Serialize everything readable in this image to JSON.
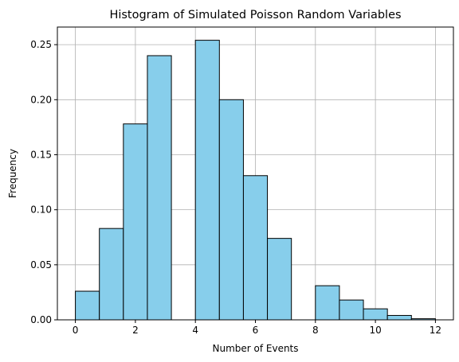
{
  "chart_data": {
    "type": "bar",
    "title": "Histogram of Simulated Poisson Random Variables",
    "xlabel": "Number of Events",
    "ylabel": "Frequency",
    "xlim": [
      -0.6,
      12.6
    ],
    "ylim": [
      0,
      0.266
    ],
    "grid": true,
    "bar_color": "#87ceeb",
    "edge_color": "#000000",
    "grid_color": "#b0b0b0",
    "bin_width": 0.8,
    "bins": [
      {
        "x0": 0.0,
        "value": 0.026
      },
      {
        "x0": 0.8,
        "value": 0.083
      },
      {
        "x0": 1.6,
        "value": 0.178
      },
      {
        "x0": 2.4,
        "value": 0.24
      },
      {
        "x0": 3.2,
        "value": 0.0
      },
      {
        "x0": 4.0,
        "value": 0.254
      },
      {
        "x0": 4.8,
        "value": 0.2
      },
      {
        "x0": 5.6,
        "value": 0.131
      },
      {
        "x0": 6.4,
        "value": 0.074
      },
      {
        "x0": 7.2,
        "value": 0.0
      },
      {
        "x0": 8.0,
        "value": 0.031
      },
      {
        "x0": 8.8,
        "value": 0.018
      },
      {
        "x0": 9.6,
        "value": 0.01
      },
      {
        "x0": 10.4,
        "value": 0.004
      },
      {
        "x0": 11.2,
        "value": 0.001
      }
    ],
    "x_ticks": [
      0,
      2,
      4,
      6,
      8,
      10,
      12
    ],
    "x_tick_labels": [
      "0",
      "2",
      "4",
      "6",
      "8",
      "10",
      "12"
    ],
    "y_ticks": [
      0,
      0.05,
      0.1,
      0.15,
      0.2,
      0.25
    ],
    "y_tick_labels": [
      "0.00",
      "0.05",
      "0.10",
      "0.15",
      "0.20",
      "0.25"
    ]
  }
}
